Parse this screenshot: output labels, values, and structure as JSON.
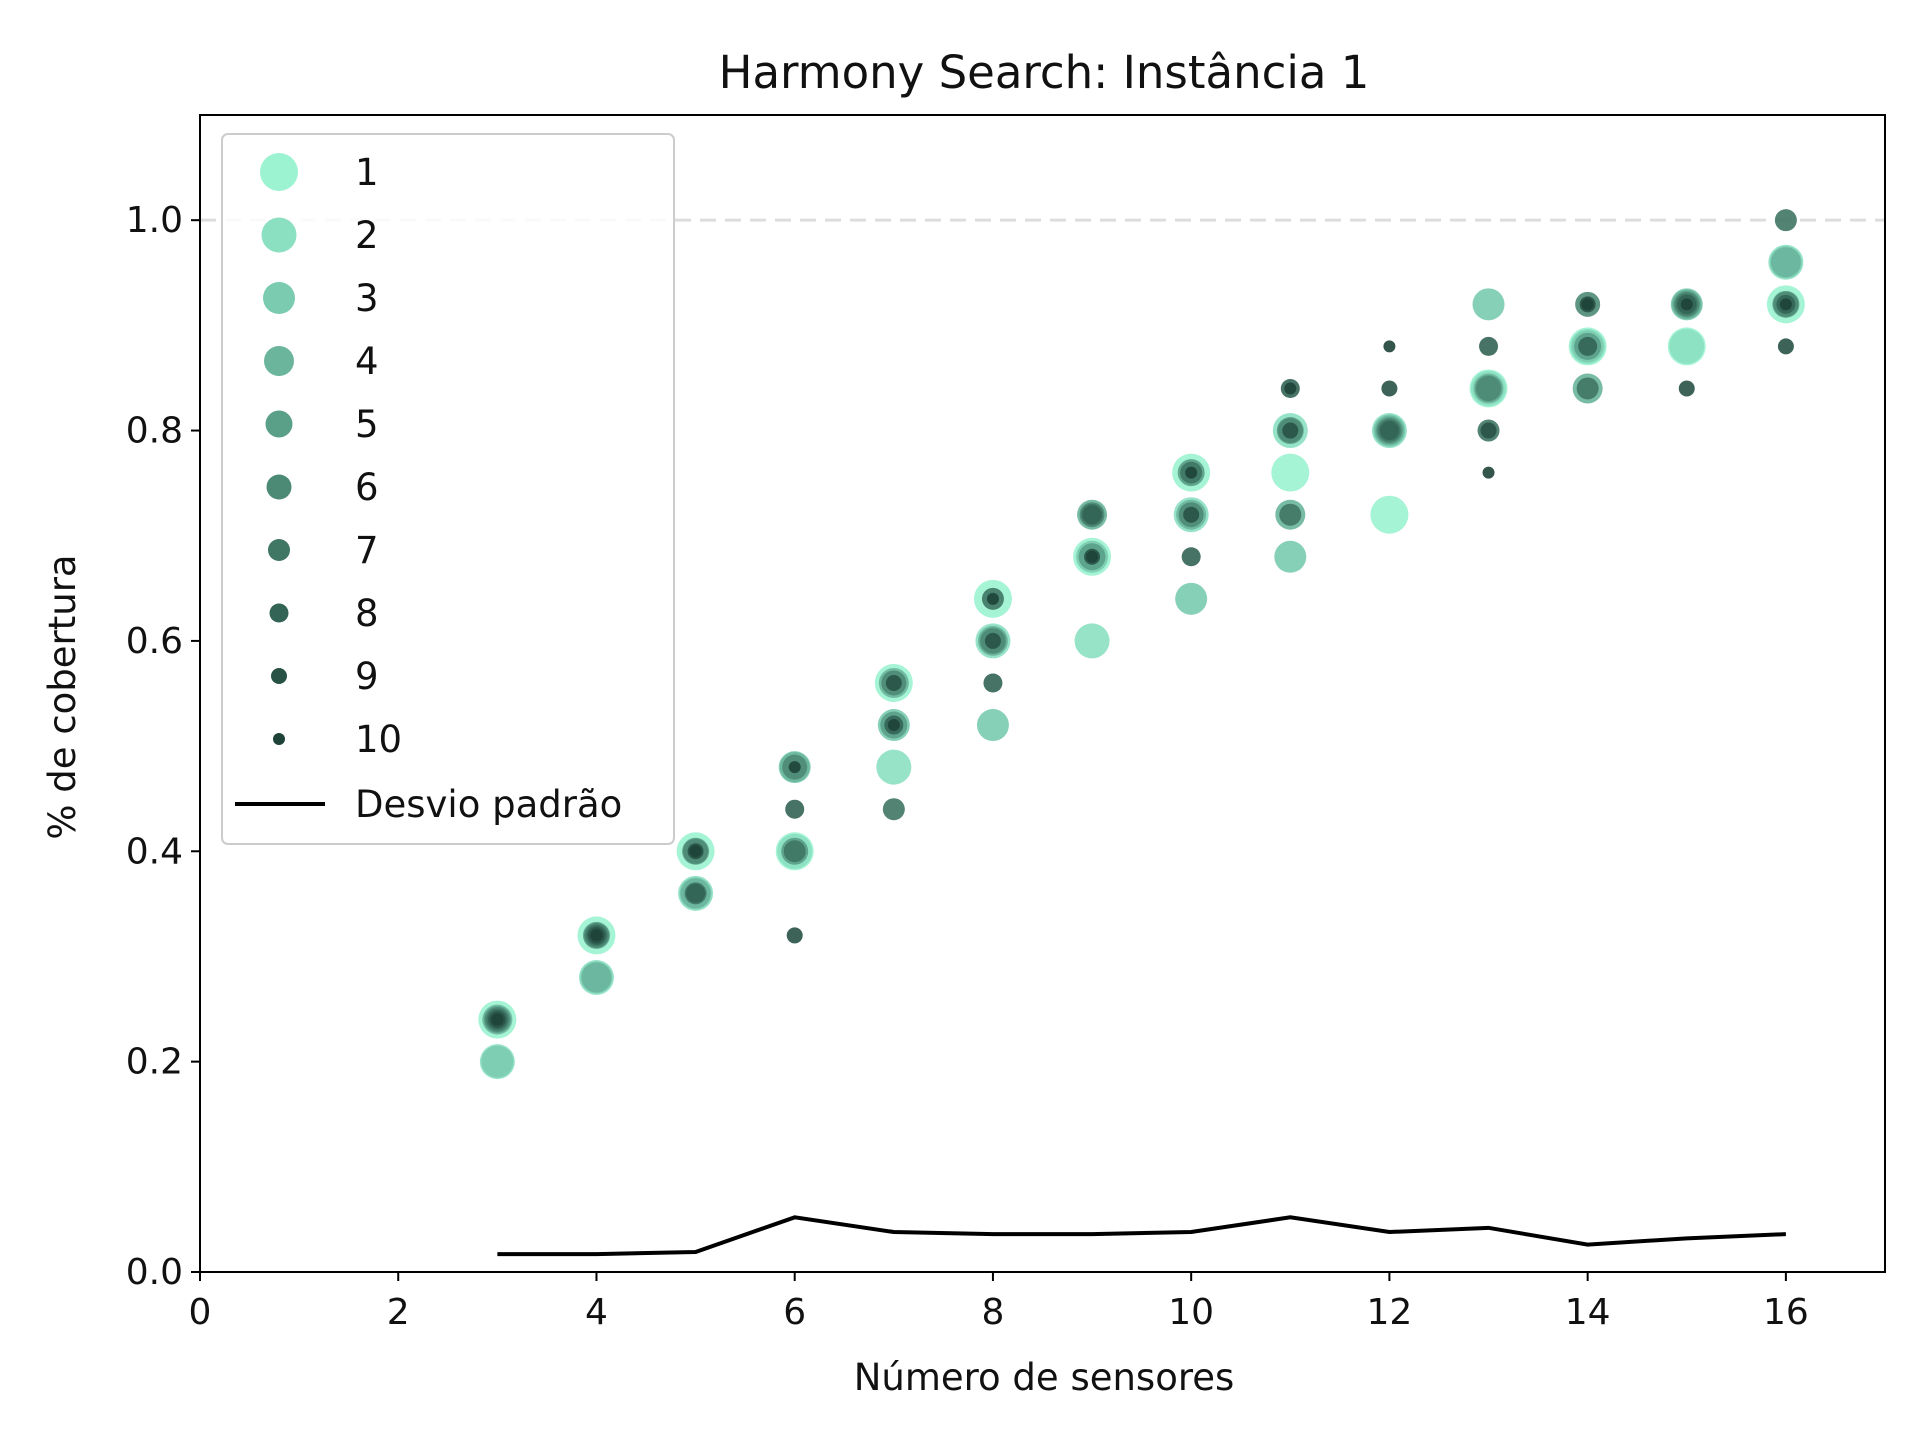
{
  "chart_data": {
    "type": "scatter",
    "title": "Harmony Search: Instância 1",
    "xlabel": "Número de sensores",
    "ylabel": "% de cobertura",
    "xlim": [
      0,
      17
    ],
    "ylim": [
      0,
      1.1
    ],
    "xticks": [
      "0",
      "2",
      "4",
      "6",
      "8",
      "10",
      "12",
      "14",
      "16"
    ],
    "yticks": [
      "0.0",
      "0.2",
      "0.4",
      "0.6",
      "0.8",
      "1.0"
    ],
    "reference_line": {
      "y": 1.0,
      "style": "dashed",
      "color": "#dddddd"
    },
    "legend_position": "upper-left",
    "series": [
      {
        "name": "1",
        "color": "#9bf3d2",
        "points": [
          [
            3,
            0.24
          ],
          [
            4,
            0.32
          ],
          [
            5,
            0.4
          ],
          [
            6,
            0.4
          ],
          [
            7,
            0.56
          ],
          [
            8,
            0.64
          ],
          [
            9,
            0.68
          ],
          [
            10,
            0.76
          ],
          [
            11,
            0.76
          ],
          [
            12,
            0.72
          ],
          [
            13,
            0.84
          ],
          [
            14,
            0.88
          ],
          [
            15,
            0.88
          ],
          [
            16,
            0.92
          ]
        ]
      },
      {
        "name": "2",
        "color": "#8be0c2",
        "points": [
          [
            3,
            0.2
          ],
          [
            4,
            0.28
          ],
          [
            5,
            0.36
          ],
          [
            6,
            0.4
          ],
          [
            7,
            0.48
          ],
          [
            8,
            0.6
          ],
          [
            9,
            0.6
          ],
          [
            10,
            0.72
          ],
          [
            11,
            0.8
          ],
          [
            12,
            0.8
          ],
          [
            13,
            0.84
          ],
          [
            14,
            0.88
          ],
          [
            15,
            0.88
          ],
          [
            16,
            0.96
          ]
        ]
      },
      {
        "name": "3",
        "color": "#7acbb0",
        "points": [
          [
            3,
            0.2
          ],
          [
            4,
            0.28
          ],
          [
            5,
            0.36
          ],
          [
            6,
            0.48
          ],
          [
            7,
            0.52
          ],
          [
            8,
            0.52
          ],
          [
            9,
            0.68
          ],
          [
            10,
            0.64
          ],
          [
            11,
            0.68
          ],
          [
            12,
            0.8
          ],
          [
            13,
            0.92
          ],
          [
            14,
            0.88
          ],
          [
            15,
            0.92
          ],
          [
            16,
            0.96
          ]
        ]
      },
      {
        "name": "4",
        "color": "#6ab59c",
        "points": [
          [
            3,
            0.24
          ],
          [
            4,
            0.28
          ],
          [
            5,
            0.36
          ],
          [
            6,
            0.48
          ],
          [
            7,
            0.56
          ],
          [
            8,
            0.6
          ],
          [
            9,
            0.72
          ],
          [
            10,
            0.72
          ],
          [
            11,
            0.72
          ],
          [
            12,
            0.8
          ],
          [
            13,
            0.84
          ],
          [
            14,
            0.84
          ],
          [
            15,
            0.92
          ],
          [
            16,
            0.96
          ]
        ]
      },
      {
        "name": "5",
        "color": "#5a9f88",
        "points": [
          [
            3,
            0.24
          ],
          [
            4,
            0.32
          ],
          [
            5,
            0.4
          ],
          [
            6,
            0.4
          ],
          [
            7,
            0.52
          ],
          [
            8,
            0.6
          ],
          [
            9,
            0.68
          ],
          [
            10,
            0.76
          ],
          [
            11,
            0.8
          ],
          [
            12,
            0.8
          ],
          [
            13,
            0.84
          ],
          [
            14,
            0.88
          ],
          [
            15,
            0.92
          ],
          [
            16,
            0.92
          ]
        ]
      },
      {
        "name": "6",
        "color": "#4c8a76",
        "points": [
          [
            3,
            0.24
          ],
          [
            4,
            0.32
          ],
          [
            5,
            0.4
          ],
          [
            6,
            0.48
          ],
          [
            7,
            0.56
          ],
          [
            8,
            0.6
          ],
          [
            9,
            0.72
          ],
          [
            10,
            0.72
          ],
          [
            11,
            0.8
          ],
          [
            12,
            0.8
          ],
          [
            13,
            0.84
          ],
          [
            14,
            0.92
          ],
          [
            15,
            0.92
          ],
          [
            16,
            0.92
          ]
        ]
      },
      {
        "name": "7",
        "color": "#3f7664",
        "points": [
          [
            3,
            0.24
          ],
          [
            4,
            0.32
          ],
          [
            5,
            0.36
          ],
          [
            6,
            0.4
          ],
          [
            7,
            0.44
          ],
          [
            8,
            0.64
          ],
          [
            9,
            0.72
          ],
          [
            10,
            0.76
          ],
          [
            11,
            0.72
          ],
          [
            12,
            0.8
          ],
          [
            13,
            0.8
          ],
          [
            14,
            0.84
          ],
          [
            15,
            0.92
          ],
          [
            16,
            1.0
          ]
        ]
      },
      {
        "name": "8",
        "color": "#336455",
        "points": [
          [
            3,
            0.24
          ],
          [
            4,
            0.32
          ],
          [
            5,
            0.36
          ],
          [
            6,
            0.44
          ],
          [
            7,
            0.52
          ],
          [
            8,
            0.56
          ],
          [
            9,
            0.72
          ],
          [
            10,
            0.68
          ],
          [
            11,
            0.84
          ],
          [
            12,
            0.8
          ],
          [
            13,
            0.88
          ],
          [
            14,
            0.88
          ],
          [
            15,
            0.92
          ],
          [
            16,
            0.92
          ]
        ]
      },
      {
        "name": "9",
        "color": "#285246",
        "points": [
          [
            3,
            0.24
          ],
          [
            4,
            0.32
          ],
          [
            5,
            0.4
          ],
          [
            6,
            0.32
          ],
          [
            7,
            0.56
          ],
          [
            8,
            0.6
          ],
          [
            9,
            0.68
          ],
          [
            10,
            0.72
          ],
          [
            11,
            0.8
          ],
          [
            12,
            0.84
          ],
          [
            13,
            0.8
          ],
          [
            14,
            0.92
          ],
          [
            15,
            0.84
          ],
          [
            16,
            0.88
          ]
        ]
      },
      {
        "name": "10",
        "color": "#1e4238",
        "points": [
          [
            3,
            0.24
          ],
          [
            4,
            0.32
          ],
          [
            5,
            0.4
          ],
          [
            6,
            0.48
          ],
          [
            7,
            0.52
          ],
          [
            8,
            0.64
          ],
          [
            9,
            0.68
          ],
          [
            10,
            0.76
          ],
          [
            11,
            0.84
          ],
          [
            12,
            0.88
          ],
          [
            13,
            0.76
          ],
          [
            14,
            0.92
          ],
          [
            15,
            0.92
          ],
          [
            16,
            0.92
          ]
        ]
      }
    ],
    "std_line": {
      "name": "Desvio padrão",
      "color": "#000000",
      "x": [
        3,
        4,
        5,
        6,
        7,
        8,
        9,
        10,
        11,
        12,
        13,
        14,
        15,
        16
      ],
      "y": [
        0.017,
        0.017,
        0.019,
        0.052,
        0.038,
        0.036,
        0.036,
        0.038,
        0.052,
        0.038,
        0.042,
        0.026,
        0.032,
        0.036
      ]
    }
  }
}
